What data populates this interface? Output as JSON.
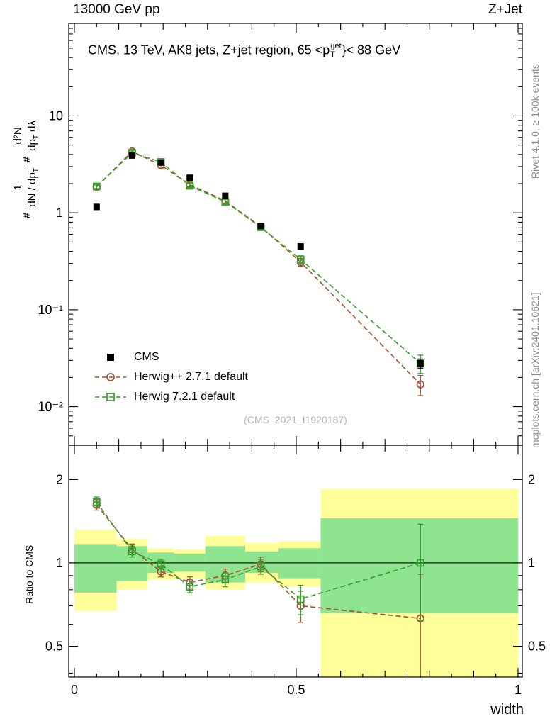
{
  "header": {
    "left": "13000 GeV pp",
    "right": "Z+Jet"
  },
  "plot_title": {
    "prefix": "CMS, 13 TeV, AK8 jets, Z+jet region, 65 <p",
    "sup": "{jet",
    "sub": "T",
    "suffix": "}< 88 GeV"
  },
  "watermark": "(CMS_2021_I1920187)",
  "side_notes": {
    "top": "Rivet 4.1.0, ≥ 100k events",
    "bottom": "mcplots.cern.ch [arXiv:2401.10621]"
  },
  "axes": {
    "x_label": "width",
    "ratio_label": "Ratio to CMS"
  },
  "y_axis_label": {
    "hash1": "#",
    "frac1_num": "1",
    "frac1_den": "dN / dp",
    "frac1_den_sub": "T",
    "hash2": "#",
    "frac2_num": "d²N",
    "frac2_den_a": "dp",
    "frac2_den_sub": "T",
    "frac2_den_b": " dλ"
  },
  "legend": {
    "items": [
      {
        "label": "CMS",
        "marker": "filled-square",
        "color": "#000000"
      },
      {
        "label": "Herwig++ 2.7.1 default",
        "marker": "open-circle",
        "color": "#A0522D"
      },
      {
        "label": "Herwig 7.2.1 default",
        "marker": "open-square",
        "color": "#33A02C"
      }
    ]
  },
  "chart_data": {
    "type": "line",
    "title": "CMS, 13 TeV, AK8 jets, Z+jet region, 65 <pT{jet}< 88 GeV",
    "xlabel": "width",
    "x_range": [
      0,
      1
    ],
    "x_ticks": [
      {
        "v": 0,
        "label": "0"
      },
      {
        "v": 0.5,
        "label": "0.5"
      },
      {
        "v": 1,
        "label": "1"
      }
    ],
    "bin_centers": [
      0.05,
      0.13,
      0.195,
      0.26,
      0.34,
      0.42,
      0.51,
      0.78
    ],
    "top_panel": {
      "y_scale": "log",
      "y_range": [
        0.004,
        90
      ],
      "y_ticks": [
        {
          "v": 10,
          "label": "10"
        },
        {
          "v": 1,
          "label": "1"
        },
        {
          "v": 0.1,
          "label": "10⁻¹"
        },
        {
          "v": 0.01,
          "label": "10⁻²"
        }
      ],
      "series": [
        {
          "name": "CMS",
          "marker": "filled-square",
          "color": "#000000",
          "line": false,
          "x": [
            0.05,
            0.13,
            0.195,
            0.26,
            0.34,
            0.42,
            0.51,
            0.78
          ],
          "y": [
            1.15,
            3.9,
            3.3,
            2.3,
            1.5,
            0.73,
            0.45,
            0.028
          ],
          "yerr": [
            0.06,
            0.18,
            0.14,
            0.1,
            0.07,
            0.04,
            0.025,
            0.003
          ]
        },
        {
          "name": "Herwig++ 2.7.1 default",
          "marker": "open-circle",
          "color": "#A0522D",
          "line": true,
          "x": [
            0.05,
            0.13,
            0.195,
            0.26,
            0.34,
            0.42,
            0.51,
            0.78
          ],
          "y": [
            1.85,
            4.3,
            3.1,
            1.95,
            1.33,
            0.72,
            0.31,
            0.017
          ],
          "yerr": [
            0.09,
            0.2,
            0.15,
            0.1,
            0.07,
            0.04,
            0.03,
            0.004
          ]
        },
        {
          "name": "Herwig 7.2.1 default",
          "marker": "open-square",
          "color": "#33A02C",
          "line": true,
          "x": [
            0.05,
            0.13,
            0.195,
            0.26,
            0.34,
            0.42,
            0.51,
            0.78
          ],
          "y": [
            1.87,
            4.15,
            3.35,
            1.9,
            1.3,
            0.71,
            0.33,
            0.028
          ],
          "yerr": [
            0.09,
            0.2,
            0.15,
            0.1,
            0.07,
            0.04,
            0.03,
            0.006
          ]
        }
      ]
    },
    "ratio_panel": {
      "y_scale": "log",
      "y_range": [
        0.387,
        2.66
      ],
      "y_ticks": [
        {
          "v": 2,
          "label": "2"
        },
        {
          "v": 1,
          "label": "1"
        },
        {
          "v": 0.5,
          "label": "0.5"
        }
      ],
      "reference_line": 1,
      "bands": {
        "bin_edges": [
          0,
          0.095,
          0.165,
          0.225,
          0.295,
          0.385,
          0.46,
          0.555,
          1.0
        ],
        "yellow": {
          "color": "#FFFF99",
          "lo": [
            0.67,
            0.8,
            0.87,
            0.88,
            0.8,
            0.85,
            0.82,
            0.38
          ],
          "hi": [
            1.32,
            1.22,
            1.13,
            1.12,
            1.25,
            1.18,
            1.2,
            1.85
          ]
        },
        "green": {
          "color": "#8FE48F",
          "lo": [
            0.78,
            0.86,
            0.92,
            0.93,
            0.85,
            0.92,
            0.88,
            0.66
          ],
          "hi": [
            1.17,
            1.15,
            1.09,
            1.08,
            1.15,
            1.1,
            1.13,
            1.45
          ]
        }
      },
      "series": [
        {
          "name": "Herwig++ 2.7.1 default",
          "marker": "open-circle",
          "color": "#A0522D",
          "line": true,
          "x": [
            0.05,
            0.13,
            0.195,
            0.26,
            0.34,
            0.42,
            0.51,
            0.78
          ],
          "y": [
            1.62,
            1.12,
            0.93,
            0.85,
            0.9,
            0.99,
            0.7,
            0.63
          ],
          "yerr": [
            0.07,
            0.05,
            0.04,
            0.04,
            0.05,
            0.06,
            0.09,
            0.28
          ]
        },
        {
          "name": "Herwig 7.2.1 default",
          "marker": "open-square",
          "color": "#33A02C",
          "line": true,
          "x": [
            0.05,
            0.13,
            0.195,
            0.26,
            0.34,
            0.42,
            0.51,
            0.78
          ],
          "y": [
            1.66,
            1.1,
            0.99,
            0.82,
            0.87,
            0.97,
            0.74,
            1.0
          ],
          "yerr": [
            0.07,
            0.05,
            0.04,
            0.04,
            0.05,
            0.06,
            0.09,
            0.38
          ]
        }
      ]
    }
  }
}
